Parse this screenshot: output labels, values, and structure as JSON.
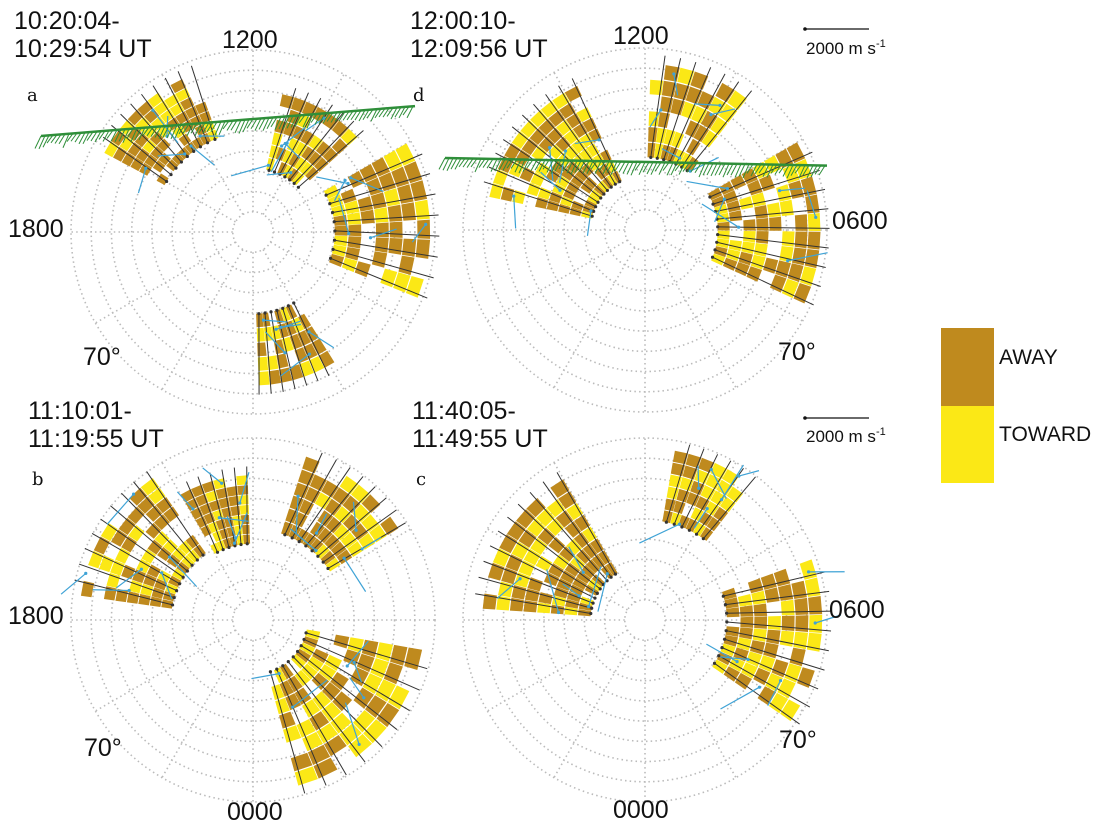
{
  "panels": [
    {
      "id": "a",
      "letter": "a",
      "time_line1": "10:20:04-",
      "time_line2": "10:29:54 UT",
      "mlt_labels": {
        "top": "1200",
        "left": "1800",
        "right": "",
        "bottom": ""
      },
      "latitude_label": "70°",
      "has_scale": false,
      "has_convection_boundary": true,
      "echo_region_count": 4
    },
    {
      "id": "d",
      "letter": "d",
      "time_line1": "12:00:10-",
      "time_line2": "12:09:56 UT",
      "mlt_labels": {
        "top": "1200",
        "left": "",
        "right": "0600",
        "bottom": ""
      },
      "latitude_label": "70°",
      "has_scale": true,
      "has_convection_boundary": true,
      "echo_region_count": 3
    },
    {
      "id": "b",
      "letter": "b",
      "time_line1": "11:10:01-",
      "time_line2": "11:19:55 UT",
      "mlt_labels": {
        "top": "",
        "left": "1800",
        "right": "",
        "bottom": "0000"
      },
      "latitude_label": "70°",
      "has_scale": false,
      "has_convection_boundary": false,
      "echo_region_count": 4
    },
    {
      "id": "c",
      "letter": "c",
      "time_line1": "11:40:05-",
      "time_line2": "11:49:55 UT",
      "mlt_labels": {
        "top": "",
        "left": "",
        "right": "0600",
        "bottom": "0000"
      },
      "latitude_label": "70°",
      "has_scale": true,
      "has_convection_boundary": false,
      "echo_region_count": 3
    }
  ],
  "scale": {
    "label": "2000 m s",
    "superscript": "-1"
  },
  "legend": {
    "items": [
      {
        "label": "AWAY",
        "color": "#bf8a1e"
      },
      {
        "label": "TOWARD",
        "color": "#fbe816"
      }
    ]
  },
  "colors": {
    "away": "#bf8a1e",
    "toward": "#fbe816",
    "boundary": "#2f8f3a",
    "vector_dark": "#333333",
    "vector_blue": "#3fa3d6",
    "grid": "#bbbbbb"
  }
}
